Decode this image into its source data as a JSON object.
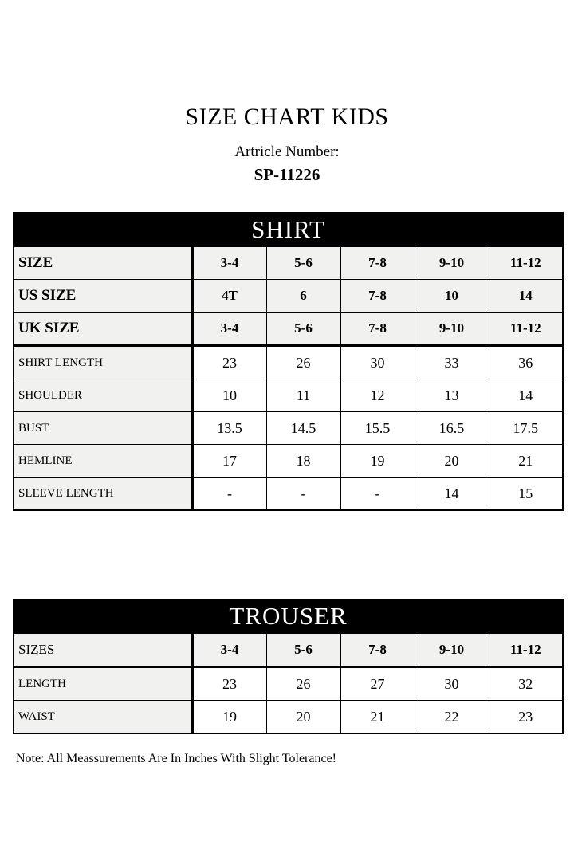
{
  "page": {
    "title": "SIZE CHART KIDS",
    "article_label": "Artricle Number:",
    "article_number": "SP-11226",
    "note": "Note: All Meassurements Are In Inches With Slight Tolerance!"
  },
  "colors": {
    "band_background": "#000000",
    "band_text": "#ffffff",
    "label_row_background": "#f1f1f0",
    "value_cell_background": "#ffffff",
    "border": "#000000"
  },
  "shirt_table": {
    "title": "SHIRT",
    "size_rows": [
      {
        "label": "SIZE",
        "values": [
          "3-4",
          "5-6",
          "7-8",
          "9-10",
          "11-12"
        ]
      },
      {
        "label": "US SIZE",
        "values": [
          "4T",
          "6",
          "7-8",
          "10",
          "14"
        ]
      },
      {
        "label": "UK SIZE",
        "values": [
          "3-4",
          "5-6",
          "7-8",
          "9-10",
          "11-12"
        ]
      }
    ],
    "measure_rows": [
      {
        "label": "SHIRT LENGTH",
        "values": [
          "23",
          "26",
          "30",
          "33",
          "36"
        ]
      },
      {
        "label": "SHOULDER",
        "values": [
          "10",
          "11",
          "12",
          "13",
          "14"
        ]
      },
      {
        "label": "BUST",
        "values": [
          "13.5",
          "14.5",
          "15.5",
          "16.5",
          "17.5"
        ]
      },
      {
        "label": "HEMLINE",
        "values": [
          "17",
          "18",
          "19",
          "20",
          "21"
        ]
      },
      {
        "label": "SLEEVE LENGTH",
        "values": [
          "-",
          "-",
          "-",
          "14",
          "15"
        ]
      }
    ]
  },
  "trouser_table": {
    "title": "TROUSER",
    "size_rows": [
      {
        "label": "SIZES",
        "values": [
          "3-4",
          "5-6",
          "7-8",
          "9-10",
          "11-12"
        ]
      }
    ],
    "measure_rows": [
      {
        "label": "LENGTH",
        "values": [
          "23",
          "26",
          "27",
          "30",
          "32"
        ]
      },
      {
        "label": "WAIST",
        "values": [
          "19",
          "20",
          "21",
          "22",
          "23"
        ]
      }
    ]
  }
}
